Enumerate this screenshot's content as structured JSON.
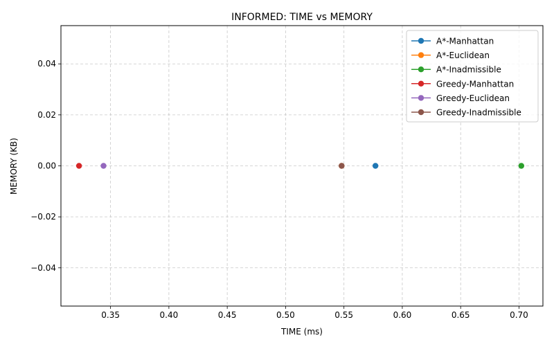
{
  "chart_data": {
    "type": "scatter",
    "title": "INFORMED: TIME vs MEMORY",
    "xlabel": "TIME (ms)",
    "ylabel": "MEMORY (KB)",
    "xlim": [
      0.3075,
      0.7205
    ],
    "ylim": [
      -0.055,
      0.055
    ],
    "xticks": [
      0.35,
      0.4,
      0.45,
      0.5,
      0.55,
      0.6,
      0.65,
      0.7
    ],
    "xtick_labels": [
      "0.35",
      "0.40",
      "0.45",
      "0.50",
      "0.55",
      "0.60",
      "0.65",
      "0.70"
    ],
    "yticks": [
      -0.04,
      -0.02,
      0.0,
      0.02,
      0.04
    ],
    "ytick_labels": [
      "−0.04",
      "−0.02",
      "0.00",
      "0.02",
      "0.04"
    ],
    "grid": true,
    "grid_style": "dashed",
    "legend_position": "top-right",
    "marker": "o",
    "series": [
      {
        "name": "A*-Manhattan",
        "color": "#1f77b4",
        "x": [
          0.577
        ],
        "y": [
          0.0
        ]
      },
      {
        "name": "A*-Euclidean",
        "color": "#ff7f0e",
        "x": [
          0.548
        ],
        "y": [
          0.0
        ]
      },
      {
        "name": "A*-Inadmissible",
        "color": "#2ca02c",
        "x": [
          0.702
        ],
        "y": [
          0.0
        ]
      },
      {
        "name": "Greedy-Manhattan",
        "color": "#d62728",
        "x": [
          0.323
        ],
        "y": [
          0.0
        ]
      },
      {
        "name": "Greedy-Euclidean",
        "color": "#9467bd",
        "x": [
          0.344
        ],
        "y": [
          0.0
        ]
      },
      {
        "name": "Greedy-Inadmissible",
        "color": "#8c564b",
        "x": [
          0.548
        ],
        "y": [
          0.0
        ]
      }
    ]
  }
}
